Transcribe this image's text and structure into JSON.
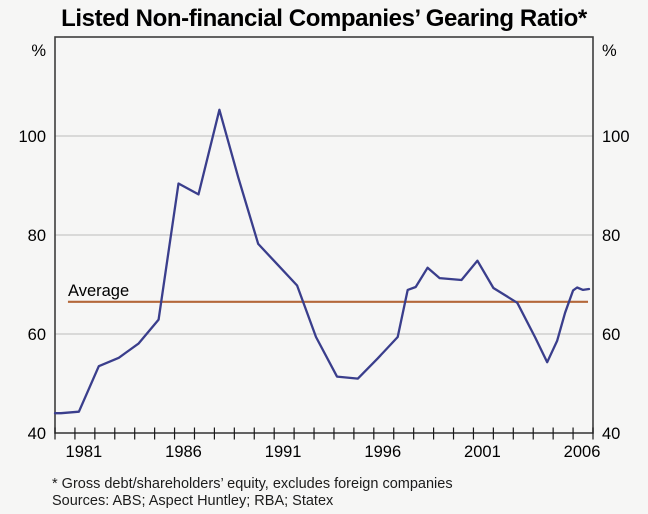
{
  "title": "Listed Non-financial Companies’ Gearing Ratio*",
  "footnote": "* Gross debt/shareholders’ equity, excludes foreign companies",
  "sources": "Sources: ABS; Aspect Huntley; RBA; Statex",
  "average": {
    "label": "Average",
    "value": 66.5
  },
  "y_axis": {
    "unit": "%",
    "ticks": [
      40,
      60,
      80,
      100
    ],
    "min": 40,
    "max": 120
  },
  "x_axis": {
    "labels": [
      "1981",
      "1986",
      "1991",
      "1996",
      "2001",
      "2006"
    ],
    "minor_tick_interval": 1,
    "min": 1980,
    "max": 2007
  },
  "colors": {
    "series": "#3a3e8c",
    "average": "#b4683a",
    "grid": "#c8c8c8",
    "frame": "#3d3d3d",
    "tick": "#1a1a1a",
    "background": "#f6f6f5"
  },
  "chart_data": {
    "type": "line",
    "title": "Listed Non-financial Companies’ Gearing Ratio*",
    "ylabel": "%",
    "xlim": [
      1980,
      2007
    ],
    "ylim": [
      40,
      120
    ],
    "yticks": [
      40,
      60,
      80,
      100
    ],
    "xtick_labels": [
      "1981",
      "1986",
      "1991",
      "1996",
      "2001",
      "2006"
    ],
    "xtick_label_years": [
      1981,
      1986,
      1991,
      1996,
      2001,
      2006
    ],
    "grid": "horizontal",
    "legend_position": "none",
    "average_line": {
      "label": "Average",
      "value": 66.5,
      "x_start": 1980.65,
      "x_end": 2006.75
    },
    "series": [
      {
        "name": "Gearing ratio",
        "points": [
          [
            1980.0,
            44.0
          ],
          [
            1980.3,
            44.0
          ],
          [
            1981.2,
            44.3
          ],
          [
            1982.2,
            53.5
          ],
          [
            1983.2,
            55.2
          ],
          [
            1984.2,
            58.1
          ],
          [
            1985.2,
            62.9
          ],
          [
            1986.2,
            90.4
          ],
          [
            1987.2,
            88.2
          ],
          [
            1988.25,
            105.3
          ],
          [
            1989.2,
            91.6
          ],
          [
            1990.2,
            78.2
          ],
          [
            1991.15,
            74.1
          ],
          [
            1992.15,
            69.8
          ],
          [
            1993.1,
            59.4
          ],
          [
            1994.15,
            51.4
          ],
          [
            1995.2,
            51.0
          ],
          [
            1996.2,
            55.1
          ],
          [
            1997.2,
            59.4
          ],
          [
            1997.7,
            68.9
          ],
          [
            1998.1,
            69.5
          ],
          [
            1998.7,
            73.4
          ],
          [
            1999.3,
            71.3
          ],
          [
            2000.4,
            70.9
          ],
          [
            2001.2,
            74.8
          ],
          [
            2002.0,
            69.3
          ],
          [
            2003.2,
            66.3
          ],
          [
            2004.1,
            59.3
          ],
          [
            2004.7,
            54.3
          ],
          [
            2005.2,
            58.6
          ],
          [
            2005.6,
            64.3
          ],
          [
            2006.0,
            68.8
          ],
          [
            2006.2,
            69.4
          ],
          [
            2006.5,
            68.9
          ],
          [
            2006.8,
            69.1
          ]
        ]
      }
    ]
  }
}
